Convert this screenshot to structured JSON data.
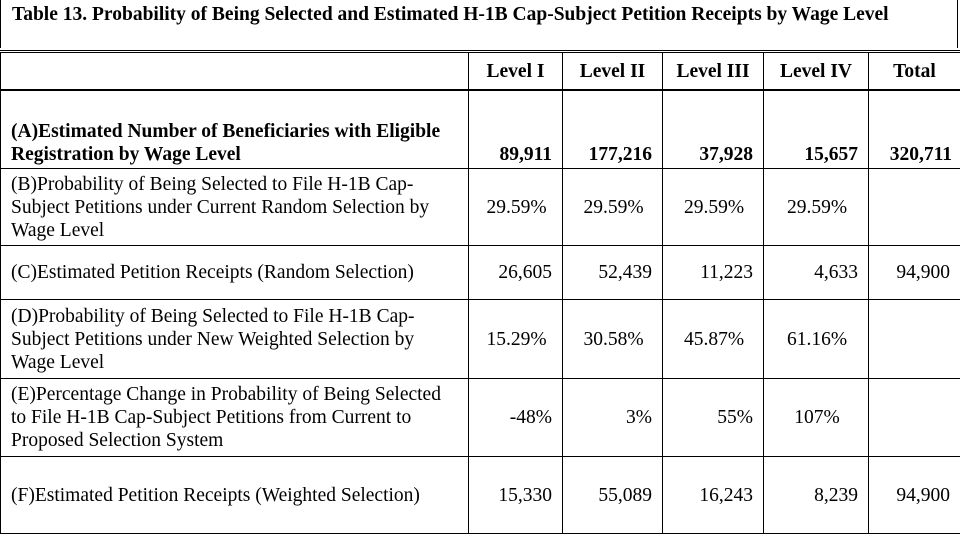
{
  "title": "Table 13. Probability of Being Selected and Estimated H-1B Cap-Subject Petition Receipts by Wage Level",
  "columns": [
    "",
    "Level I",
    "Level II",
    "Level III",
    "Level IV",
    "Total"
  ],
  "rows": [
    {
      "label": "(A)Estimated Number of Beneficiaries with Eligible Registration by Wage Level",
      "values": [
        "89,911",
        "177,216",
        "37,928",
        "15,657",
        "320,711"
      ]
    },
    {
      "label": "(B)Probability of Being Selected to File H-1B Cap-Subject Petitions under Current Random Selection by Wage Level",
      "values": [
        "29.59%",
        "29.59%",
        "29.59%",
        "29.59%",
        ""
      ]
    },
    {
      "label": "(C)Estimated Petition Receipts (Random Selection)",
      "values": [
        "26,605",
        "52,439",
        "11,223",
        "4,633",
        "94,900"
      ]
    },
    {
      "label": "(D)Probability of Being Selected to File H-1B Cap-Subject Petitions under New Weighted Selection by Wage Level",
      "values": [
        "15.29%",
        "30.58%",
        "45.87%",
        "61.16%",
        ""
      ]
    },
    {
      "label": "(E)Percentage Change in Probability of Being Selected to File H-1B Cap-Subject Petitions from Current to Proposed Selection System",
      "values": [
        "-48%",
        "3%",
        "55%",
        "107%",
        ""
      ]
    },
    {
      "label": "(F)Estimated Petition Receipts (Weighted Selection)",
      "values": [
        "15,330",
        "55,089",
        "16,243",
        "8,239",
        "94,900"
      ]
    }
  ]
}
